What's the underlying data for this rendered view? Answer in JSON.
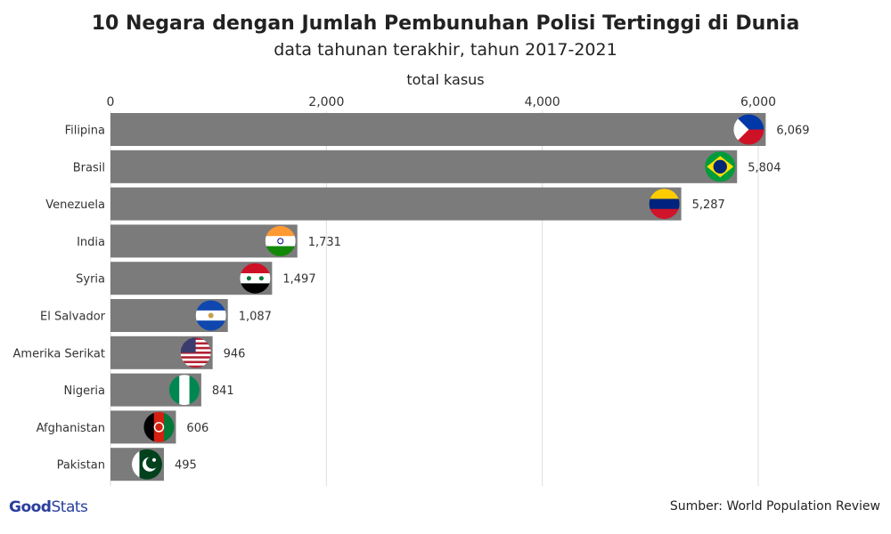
{
  "chart_data": {
    "type": "bar",
    "orientation": "horizontal",
    "title": "10 Negara dengan Jumlah Pembunuhan Polisi Tertinggi di Dunia",
    "subtitle": "data tahunan terakhir, tahun 2017-2021",
    "xlabel": "total kasus",
    "xlim": [
      0,
      6069
    ],
    "xticks": [
      0,
      2000,
      4000,
      6000
    ],
    "xtick_labels": [
      "0",
      "2,000",
      "4,000",
      "6,000"
    ],
    "grid": true,
    "categories": [
      "Filipina",
      "Brasil",
      "Venezuela",
      "India",
      "Syria",
      "El Salvador",
      "Amerika Serikat",
      "Nigeria",
      "Afghanistan",
      "Pakistan"
    ],
    "values": [
      6069,
      5804,
      5287,
      1731,
      1497,
      1087,
      946,
      841,
      606,
      495
    ],
    "value_labels": [
      "6,069",
      "5,804",
      "5,287",
      "1,731",
      "1,497",
      "1,087",
      "946",
      "841",
      "606",
      "495"
    ],
    "flag_icons": [
      "philippines-flag",
      "brazil-flag",
      "venezuela-flag",
      "india-flag",
      "syria-flag",
      "el-salvador-flag",
      "usa-flag",
      "nigeria-flag",
      "afghanistan-flag",
      "pakistan-flag"
    ],
    "bar_color": "#7b7b7b"
  },
  "source": "Sumber: World Population Review",
  "logo": {
    "part1": "Good",
    "part2": "Stats"
  }
}
